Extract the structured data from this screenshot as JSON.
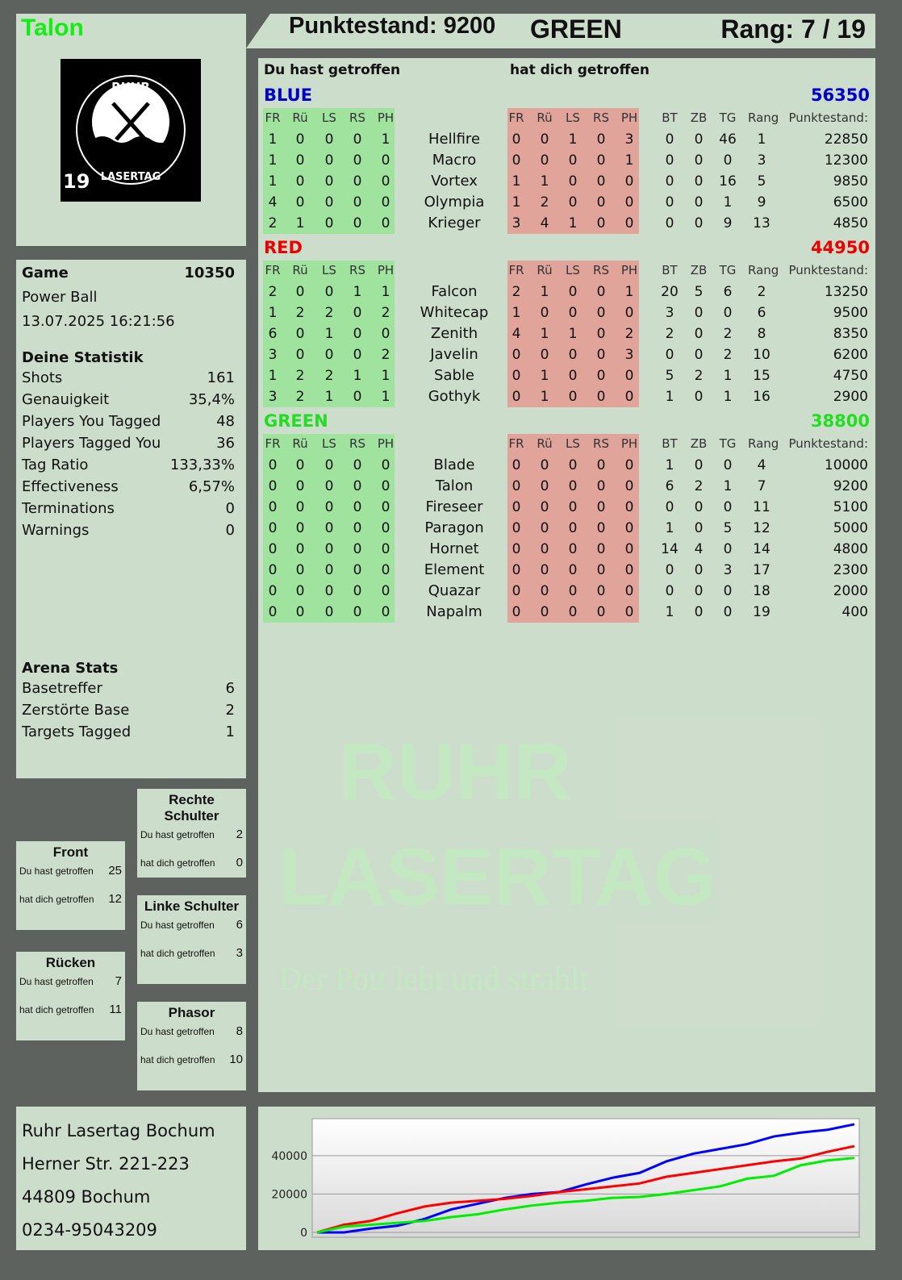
{
  "player": {
    "name": "Talon",
    "logo_number": "19",
    "logo_text": "RUHR LASERTAG"
  },
  "header": {
    "score": "Punktestand: 9200",
    "team": "GREEN",
    "rank": "Rang: 7 / 19"
  },
  "table": {
    "hit_label": "Du hast getroffen",
    "hit_by_label": "hat dich getroffen",
    "columns": [
      "FR",
      "Rü",
      "LS",
      "RS",
      "PH"
    ],
    "extra_columns": [
      "BT",
      "ZB",
      "TG",
      "Rang",
      "Punktestand:"
    ],
    "teams": [
      {
        "name": "BLUE",
        "score": "56350",
        "color": "#0000cc",
        "players": [
          [
            "Hellfire",
            [
              1,
              0,
              0,
              0,
              1
            ],
            [
              0,
              0,
              1,
              0,
              3
            ],
            [
              0,
              0,
              46,
              1,
              22850
            ]
          ],
          [
            "Macro",
            [
              1,
              0,
              0,
              0,
              0
            ],
            [
              0,
              0,
              0,
              0,
              1
            ],
            [
              0,
              0,
              0,
              3,
              12300
            ]
          ],
          [
            "Vortex",
            [
              1,
              0,
              0,
              0,
              0
            ],
            [
              1,
              1,
              0,
              0,
              0
            ],
            [
              0,
              0,
              16,
              5,
              9850
            ]
          ],
          [
            "Olympia",
            [
              4,
              0,
              0,
              0,
              0
            ],
            [
              1,
              2,
              0,
              0,
              0
            ],
            [
              0,
              0,
              1,
              9,
              6500
            ]
          ],
          [
            "Krieger",
            [
              2,
              1,
              0,
              0,
              0
            ],
            [
              3,
              4,
              1,
              0,
              0
            ],
            [
              0,
              0,
              9,
              13,
              4850
            ]
          ]
        ]
      },
      {
        "name": "RED",
        "score": "44950",
        "color": "#ee0000",
        "players": [
          [
            "Falcon",
            [
              2,
              0,
              0,
              1,
              1
            ],
            [
              2,
              1,
              0,
              0,
              1
            ],
            [
              20,
              5,
              6,
              2,
              13250
            ]
          ],
          [
            "Whitecap",
            [
              1,
              2,
              2,
              0,
              2
            ],
            [
              1,
              0,
              0,
              0,
              0
            ],
            [
              3,
              0,
              0,
              6,
              9500
            ]
          ],
          [
            "Zenith",
            [
              6,
              0,
              1,
              0,
              0
            ],
            [
              4,
              1,
              1,
              0,
              2
            ],
            [
              2,
              0,
              2,
              8,
              8350
            ]
          ],
          [
            "Javelin",
            [
              3,
              0,
              0,
              0,
              2
            ],
            [
              0,
              0,
              0,
              0,
              3
            ],
            [
              0,
              0,
              2,
              10,
              6200
            ]
          ],
          [
            "Sable",
            [
              1,
              2,
              2,
              1,
              1
            ],
            [
              0,
              1,
              0,
              0,
              0
            ],
            [
              5,
              2,
              1,
              15,
              4750
            ]
          ],
          [
            "Gothyk",
            [
              3,
              2,
              1,
              0,
              1
            ],
            [
              0,
              1,
              0,
              0,
              0
            ],
            [
              1,
              0,
              1,
              16,
              2900
            ]
          ]
        ]
      },
      {
        "name": "GREEN",
        "score": "38800",
        "color": "#22dd22",
        "players": [
          [
            "Blade",
            [
              0,
              0,
              0,
              0,
              0
            ],
            [
              0,
              0,
              0,
              0,
              0
            ],
            [
              1,
              0,
              0,
              4,
              10000
            ]
          ],
          [
            "Talon",
            [
              0,
              0,
              0,
              0,
              0
            ],
            [
              0,
              0,
              0,
              0,
              0
            ],
            [
              6,
              2,
              1,
              7,
              9200
            ]
          ],
          [
            "Fireseer",
            [
              0,
              0,
              0,
              0,
              0
            ],
            [
              0,
              0,
              0,
              0,
              0
            ],
            [
              0,
              0,
              0,
              11,
              5100
            ]
          ],
          [
            "Paragon",
            [
              0,
              0,
              0,
              0,
              0
            ],
            [
              0,
              0,
              0,
              0,
              0
            ],
            [
              1,
              0,
              5,
              12,
              5000
            ]
          ],
          [
            "Hornet",
            [
              0,
              0,
              0,
              0,
              0
            ],
            [
              0,
              0,
              0,
              0,
              0
            ],
            [
              14,
              4,
              0,
              14,
              4800
            ]
          ],
          [
            "Element",
            [
              0,
              0,
              0,
              0,
              0
            ],
            [
              0,
              0,
              0,
              0,
              0
            ],
            [
              0,
              0,
              3,
              17,
              2300
            ]
          ],
          [
            "Quazar",
            [
              0,
              0,
              0,
              0,
              0
            ],
            [
              0,
              0,
              0,
              0,
              0
            ],
            [
              0,
              0,
              0,
              18,
              2000
            ]
          ],
          [
            "Napalm",
            [
              0,
              0,
              0,
              0,
              0
            ],
            [
              0,
              0,
              0,
              0,
              0
            ],
            [
              1,
              0,
              0,
              19,
              400
            ]
          ]
        ]
      }
    ]
  },
  "game": {
    "label": "Game",
    "id": "10350",
    "mode": "Power Ball",
    "datetime": "13.07.2025 16:21:56"
  },
  "stats": {
    "title": "Deine Statistik",
    "items": [
      [
        "Shots",
        "161"
      ],
      [
        "Genauigkeit",
        "35,4%"
      ],
      [
        "Players You Tagged",
        "48"
      ],
      [
        "Players Tagged You",
        "36"
      ],
      [
        "Tag Ratio",
        "133,33%"
      ],
      [
        "Effectiveness",
        "6,57%"
      ],
      [
        "Terminations",
        "0"
      ],
      [
        "Warnings",
        "0"
      ]
    ]
  },
  "arena": {
    "title": "Arena Stats",
    "items": [
      [
        "Basetreffer",
        "6"
      ],
      [
        "Zerstörte Base",
        "2"
      ],
      [
        "Targets Tagged",
        "1"
      ]
    ]
  },
  "zones": {
    "hit": "Du hast getroffen",
    "hit_by": "hat dich getroffen",
    "items": [
      {
        "name": "Rechte Schulter",
        "hit": "2",
        "hit_by": "0"
      },
      {
        "name": "Front",
        "hit": "25",
        "hit_by": "12"
      },
      {
        "name": "Linke Schulter",
        "hit": "6",
        "hit_by": "3"
      },
      {
        "name": "Rücken",
        "hit": "7",
        "hit_by": "11"
      },
      {
        "name": "Phasor",
        "hit": "8",
        "hit_by": "10"
      }
    ]
  },
  "venue": {
    "name": "Ruhr Lasertag Bochum",
    "street": "Herner Str. 221-223",
    "city": "44809 Bochum",
    "phone": "0234-95043209"
  },
  "watermark": {
    "line1": "RUHR",
    "line2": "LASERTAG",
    "slogan": "Der Pott lebt und strahlt"
  },
  "chart_data": {
    "type": "line",
    "ylim": [
      0,
      58000
    ],
    "yticks": [
      0,
      20000,
      40000
    ],
    "grid": true,
    "x": [
      0,
      1,
      2,
      3,
      4,
      5,
      6,
      7,
      8,
      9,
      10,
      11,
      12,
      13,
      14,
      15,
      16,
      17,
      18,
      19,
      20
    ],
    "series": [
      {
        "color": "#0000ff",
        "values": [
          0,
          0,
          2000,
          3500,
          7000,
          12000,
          15000,
          18000,
          20000,
          21000,
          25000,
          28500,
          31000,
          37000,
          41000,
          43500,
          46000,
          50000,
          52000,
          53500,
          56350
        ]
      },
      {
        "color": "#ff0000",
        "values": [
          0,
          4000,
          6000,
          10000,
          13500,
          15500,
          16500,
          17500,
          19000,
          21000,
          22500,
          24000,
          25500,
          29000,
          31000,
          33000,
          35000,
          37000,
          38500,
          42000,
          44950
        ]
      },
      {
        "color": "#00ee00",
        "values": [
          0,
          3000,
          4000,
          5000,
          6000,
          8000,
          9500,
          12000,
          14000,
          15500,
          16500,
          18000,
          18500,
          20000,
          22000,
          24000,
          28000,
          29500,
          35000,
          37500,
          38800
        ]
      }
    ]
  }
}
